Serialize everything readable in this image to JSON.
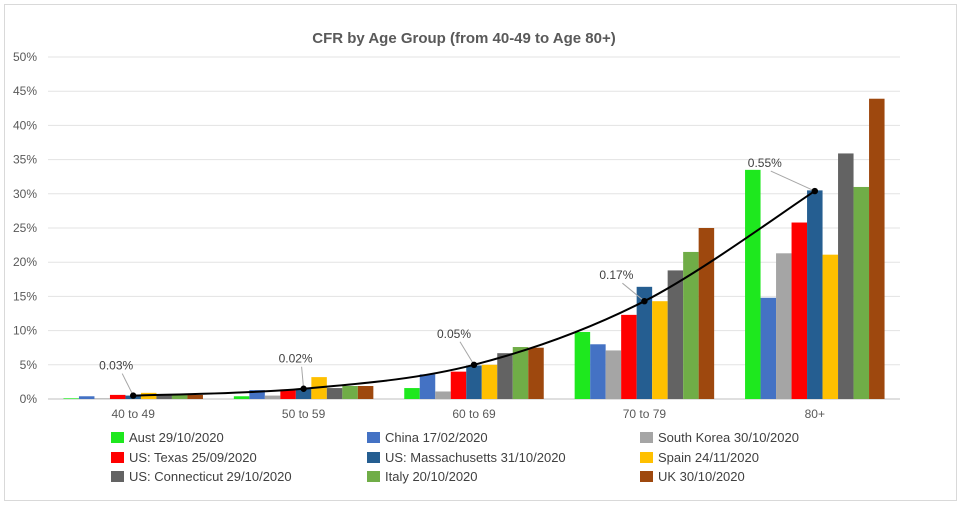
{
  "chart_data": {
    "type": "bar",
    "title": "CFR by Age Group (from 40-49 to Age 80+)",
    "xlabel": "",
    "ylabel": "",
    "ylim": [
      0,
      50
    ],
    "y_ticks": [
      "0%",
      "5%",
      "10%",
      "15%",
      "20%",
      "25%",
      "30%",
      "35%",
      "40%",
      "45%",
      "50%"
    ],
    "categories": [
      "40 to 49",
      "50 to 59",
      "60 to 69",
      "70 to 79",
      "80+"
    ],
    "grid": true,
    "legend_position": "bottom",
    "series": [
      {
        "name": "Aust 29/10/2020",
        "color": "#1EE81E",
        "values": [
          0.1,
          0.4,
          1.6,
          9.8,
          33.5
        ]
      },
      {
        "name": "China 17/02/2020",
        "color": "#4472C4",
        "values": [
          0.4,
          1.3,
          3.6,
          8.0,
          14.8
        ]
      },
      {
        "name": "South Korea 30/10/2020",
        "color": "#A5A5A5",
        "values": [
          0.1,
          0.5,
          1.1,
          7.1,
          21.3
        ]
      },
      {
        "name": "US: Texas 25/09/2020",
        "color": "#FF0000",
        "values": [
          0.6,
          1.4,
          4.0,
          12.3,
          25.8
        ]
      },
      {
        "name": "US: Massachusetts 31/10/2020",
        "color": "#255E91",
        "values": [
          0.5,
          1.5,
          4.9,
          16.4,
          30.5
        ]
      },
      {
        "name": "Spain 24/11/2020",
        "color": "#FFC000",
        "values": [
          0.9,
          3.2,
          5.0,
          14.3,
          21.1
        ]
      },
      {
        "name": "US: Connecticut 29/10/2020",
        "color": "#636363",
        "values": [
          0.7,
          1.6,
          6.7,
          18.8,
          35.9
        ]
      },
      {
        "name": "Italy 20/10/2020",
        "color": "#70AD47",
        "values": [
          0.7,
          1.9,
          7.6,
          21.5,
          31.0
        ]
      },
      {
        "name": "UK 30/10/2020",
        "color": "#9E480E",
        "values": [
          0.6,
          1.9,
          7.5,
          25.0,
          43.9
        ]
      }
    ],
    "trend_line": {
      "color": "#000000",
      "values": [
        0.5,
        1.5,
        5.0,
        14.3,
        30.4
      ],
      "labels": [
        "0.03%",
        "0.02%",
        "0.05%",
        "0.17%",
        "0.55%"
      ]
    }
  }
}
